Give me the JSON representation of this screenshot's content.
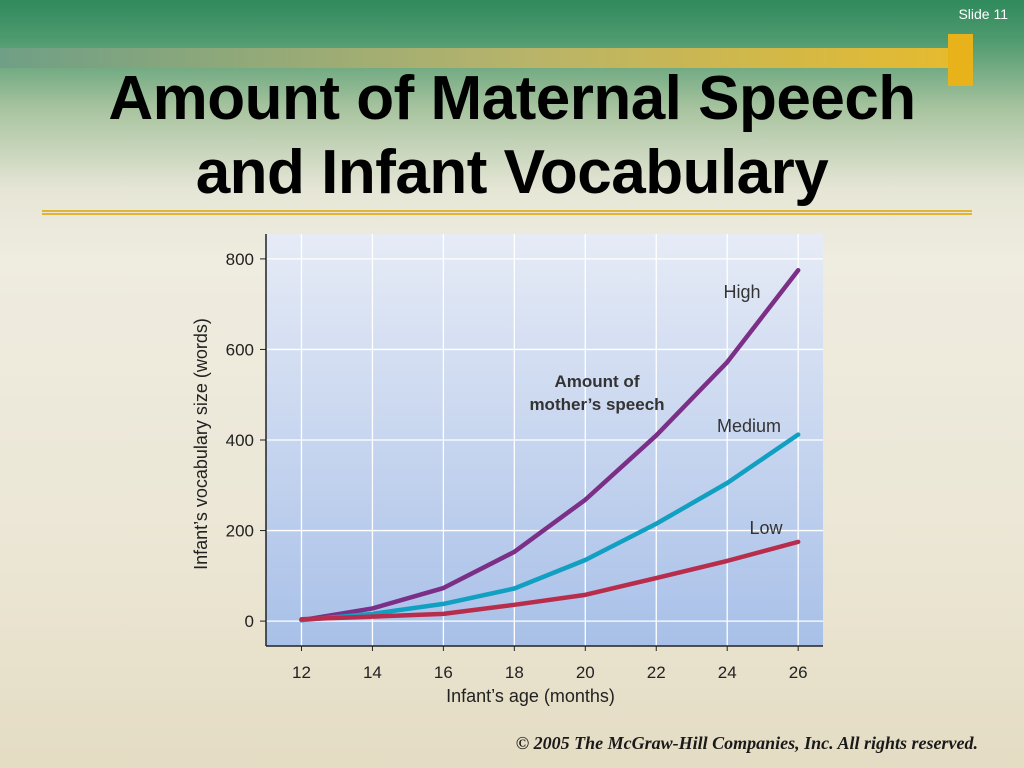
{
  "slide": {
    "number_label": "Slide 11",
    "title_line1": "Amount of Maternal Speech",
    "title_line2": "and Infant Vocabulary",
    "footer": "© 2005 The McGraw-Hill Companies, Inc. All rights reserved."
  },
  "colors": {
    "high": "#7b2f86",
    "medium": "#12a0c2",
    "low": "#b82d4c",
    "plot_bg_top": "#e6ebf6",
    "plot_bg_bottom": "#a8c0e8"
  },
  "chart_data": {
    "type": "line",
    "title": "",
    "xlabel": "Infant’s age (months)",
    "ylabel": "Infant’s vocabulary size (words)",
    "xlim": [
      11,
      26.7
    ],
    "ylim": [
      -55,
      855
    ],
    "xticks": [
      12,
      14,
      16,
      18,
      20,
      22,
      24,
      26
    ],
    "yticks": [
      0,
      200,
      400,
      600,
      800
    ],
    "grid": true,
    "legend_title": "Amount of mother’s speech",
    "series": [
      {
        "name": "High",
        "color_key": "high",
        "x": [
          12,
          14,
          16,
          18,
          20,
          22,
          24,
          26
        ],
        "y": [
          2,
          28,
          73,
          153,
          268,
          410,
          572,
          775
        ]
      },
      {
        "name": "Medium",
        "color_key": "medium",
        "x": [
          12,
          14,
          16,
          18,
          20,
          22,
          24,
          26
        ],
        "y": [
          2,
          16,
          38,
          72,
          135,
          215,
          305,
          412
        ]
      },
      {
        "name": "Low",
        "color_key": "low",
        "x": [
          12,
          14,
          16,
          18,
          20,
          22,
          24,
          26
        ],
        "y": [
          4,
          10,
          16,
          36,
          58,
          95,
          133,
          175
        ]
      }
    ]
  }
}
